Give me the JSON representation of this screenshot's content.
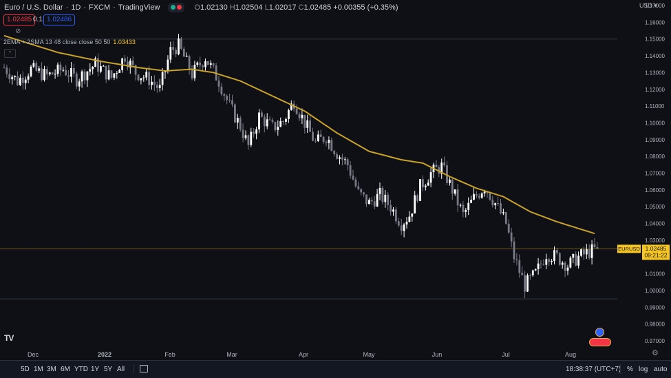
{
  "header": {
    "symbol_title": "Euro / U.S. Dollar",
    "interval": "1D",
    "exchange": "FXCM",
    "source": "TradingView",
    "ohlc": {
      "o_label": "O",
      "o": "1.02130",
      "h_label": "H",
      "h": "1.02504",
      "l_label": "L",
      "l": "1.02017",
      "c_label": "C",
      "c": "1.02485",
      "change": "+0.00355 (+0.35%)"
    },
    "sell_price": "1.02485",
    "spread": "0.1",
    "buy_price": "1.02486",
    "currency": "USD",
    "collapse_icon": "chevron-up-icon",
    "visibility_icon": "eye-crossed-icon"
  },
  "indicator": {
    "label": "2EMA + 2SMA 13 48 close close 50 50",
    "value": "1.03433",
    "color": "#c9a227"
  },
  "colors": {
    "background": "#0e1016",
    "candle": "#ffffff",
    "candle_down": "#787b86",
    "ema": "#c9a227",
    "last_price": "#f7c520",
    "sell": "#f23645",
    "buy": "#2962ff"
  },
  "last_price": {
    "symbol": "EURUSD",
    "price": "1.02485",
    "countdown": "09:21:22",
    "value": 1.02485
  },
  "bottom_bar": {
    "ranges": [
      "5D",
      "1M",
      "3M",
      "6M",
      "YTD",
      "1Y",
      "5Y",
      "All"
    ],
    "time": "18:38:37 (UTC+7)",
    "percent": "%",
    "log": "log",
    "auto": "auto"
  },
  "chart_data": {
    "type": "candlestick",
    "x_ticks": [
      "Dec",
      "2022",
      "Feb",
      "Mar",
      "Apr",
      "May",
      "Jun",
      "Jul",
      "Aug"
    ],
    "y_ticks": [
      "1.17000",
      "1.16000",
      "1.15000",
      "1.14000",
      "1.13000",
      "1.12000",
      "1.11000",
      "1.10000",
      "1.09000",
      "1.08000",
      "1.07000",
      "1.06000",
      "1.05000",
      "1.04000",
      "1.03000",
      "1.02000",
      "1.01000",
      "1.00000",
      "0.99000",
      "0.98000",
      "0.97000"
    ],
    "ylim": [
      0.964,
      1.177
    ],
    "overlay": "EMA",
    "grid": false,
    "anchors": [
      [
        0,
        1.133
      ],
      [
        5,
        1.125
      ],
      [
        10,
        1.132
      ],
      [
        16,
        1.128
      ],
      [
        22,
        1.132
      ],
      [
        27,
        1.126
      ],
      [
        34,
        1.135
      ],
      [
        40,
        1.127
      ],
      [
        45,
        1.14
      ],
      [
        49,
        1.13
      ],
      [
        54,
        1.126
      ],
      [
        58,
        1.12
      ],
      [
        62,
        1.143
      ],
      [
        65,
        1.146
      ],
      [
        70,
        1.129
      ],
      [
        75,
        1.139
      ],
      [
        80,
        1.125
      ],
      [
        84,
        1.11
      ],
      [
        88,
        1.098
      ],
      [
        91,
        1.086
      ],
      [
        95,
        1.104
      ],
      [
        100,
        1.097
      ],
      [
        104,
        1.101
      ],
      [
        108,
        1.113
      ],
      [
        112,
        1.1
      ],
      [
        116,
        1.088
      ],
      [
        120,
        1.092
      ],
      [
        124,
        1.082
      ],
      [
        128,
        1.075
      ],
      [
        132,
        1.058
      ],
      [
        136,
        1.052
      ],
      [
        140,
        1.057
      ],
      [
        144,
        1.05
      ],
      [
        148,
        1.04
      ],
      [
        151,
        1.045
      ],
      [
        155,
        1.062
      ],
      [
        159,
        1.07
      ],
      [
        163,
        1.074
      ],
      [
        167,
        1.06
      ],
      [
        171,
        1.045
      ],
      [
        175,
        1.055
      ],
      [
        179,
        1.062
      ],
      [
        183,
        1.052
      ],
      [
        187,
        1.04
      ],
      [
        190,
        1.02
      ],
      [
        194,
        1.003
      ],
      [
        198,
        1.01
      ],
      [
        202,
        1.022
      ],
      [
        206,
        1.02
      ],
      [
        210,
        1.015
      ],
      [
        214,
        1.02
      ],
      [
        218,
        1.023
      ],
      [
        221,
        1.0249
      ]
    ],
    "ema_anchors": [
      [
        0,
        1.152
      ],
      [
        20,
        1.142
      ],
      [
        35,
        1.137
      ],
      [
        50,
        1.133
      ],
      [
        60,
        1.131
      ],
      [
        70,
        1.132
      ],
      [
        78,
        1.13
      ],
      [
        88,
        1.125
      ],
      [
        100,
        1.116
      ],
      [
        112,
        1.107
      ],
      [
        124,
        1.094
      ],
      [
        136,
        1.083
      ],
      [
        148,
        1.078
      ],
      [
        156,
        1.076
      ],
      [
        166,
        1.068
      ],
      [
        176,
        1.061
      ],
      [
        186,
        1.056
      ],
      [
        196,
        1.047
      ],
      [
        206,
        1.041
      ],
      [
        216,
        1.036
      ],
      [
        220,
        1.034
      ]
    ]
  }
}
